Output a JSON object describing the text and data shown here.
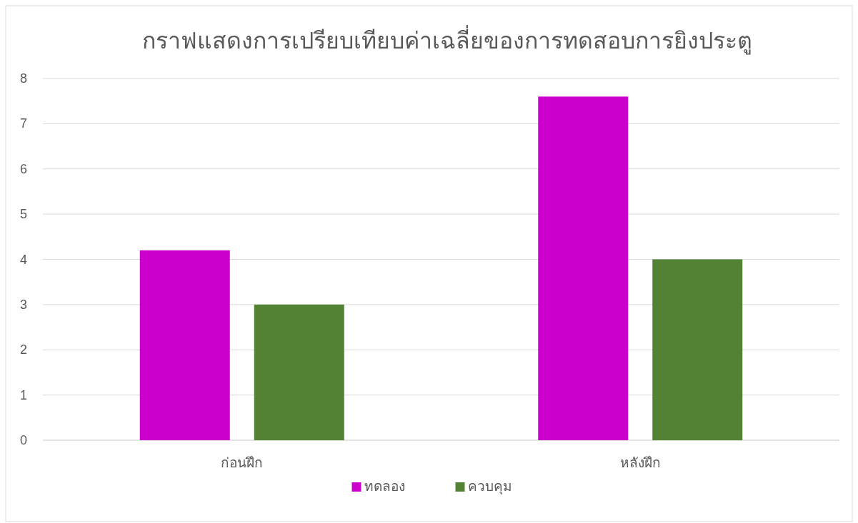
{
  "chart_data": {
    "type": "bar",
    "title": "กราฟแสดงการเปรียบเทียบค่าเฉลี่ยของการทดสอบการยิงประตู",
    "categories": [
      "ก่อนฝึก",
      "หลังฝึก"
    ],
    "series": [
      {
        "name": "ทดลอง",
        "color": "#cc00cc",
        "values": [
          4.2,
          7.6
        ]
      },
      {
        "name": "ควบคุม",
        "color": "#548235",
        "values": [
          3,
          4
        ]
      }
    ],
    "ylim": [
      0,
      8
    ],
    "yticks": [
      0,
      1,
      2,
      3,
      4,
      5,
      6,
      7,
      8
    ],
    "grid": "y",
    "legend": "bottom"
  }
}
